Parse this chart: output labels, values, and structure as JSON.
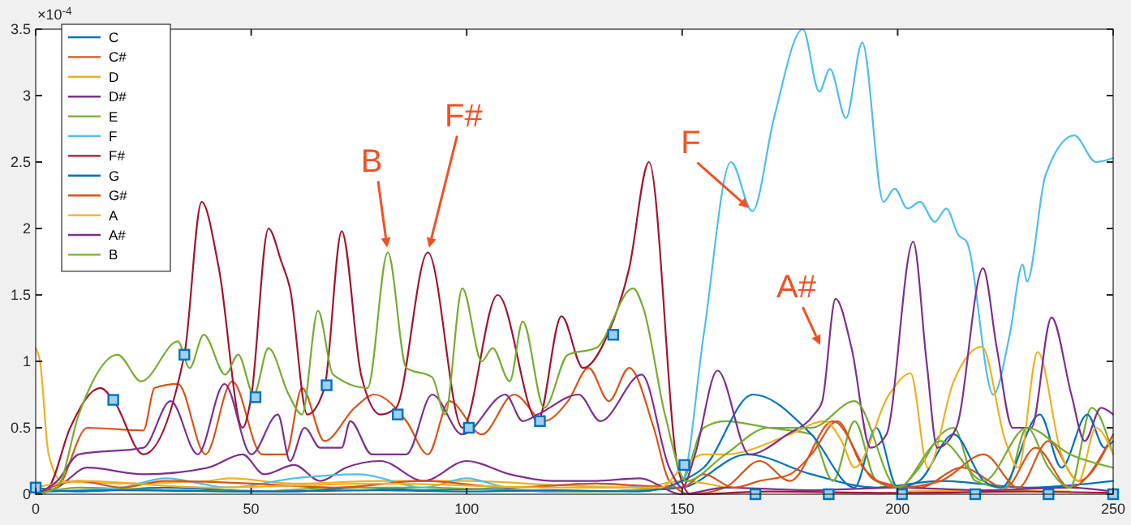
{
  "chart_data": {
    "type": "line",
    "xlim": [
      0,
      250
    ],
    "xticks": [
      0,
      50,
      100,
      150,
      200,
      250
    ],
    "ylim": [
      0,
      3.5
    ],
    "yticks": [
      0,
      0.5,
      1,
      1.5,
      2,
      2.5,
      3,
      3.5
    ],
    "grid": false,
    "legend": "top left",
    "marker": "none",
    "line_style": "solid",
    "annotations": [
      "×10$^{-4}$",
      {
        "text": "B",
        "x": 81.7,
        "y": 1.82
      },
      {
        "text": "F#",
        "x": 91,
        "y": 1.82
      },
      {
        "text": "F",
        "x": 166.3,
        "y": 2.13
      },
      {
        "text": "A#",
        "x": 182.5,
        "y": 1.09
      }
    ],
    "series": [
      {
        "name": "C",
        "color": "#0072bd",
        "x": [
          0,
          10,
          30,
          45,
          60,
          75,
          90,
          105,
          120,
          140,
          150,
          165,
          180,
          195,
          210,
          230,
          250
        ],
        "values": [
          0.05,
          0.02,
          0.05,
          0.03,
          0.02,
          0.05,
          0.03,
          0.04,
          0.02,
          0.03,
          0.05,
          0.3,
          0.15,
          0.05,
          0.1,
          0.05,
          0.1
        ]
      },
      {
        "name": "C#",
        "color": "#d95319",
        "x": [
          0,
          5,
          12,
          25,
          27.6,
          33,
          39.4,
          45.6,
          52.5,
          58,
          61.8,
          67,
          74,
          78.6,
          86,
          91,
          96,
          103.5,
          111,
          118,
          123.5,
          128.3,
          133,
          137.7,
          143.4,
          147,
          152,
          160,
          168,
          175,
          185,
          195,
          205,
          215,
          225,
          232,
          240,
          250
        ],
        "values": [
          0,
          0.05,
          0.5,
          0.48,
          0.8,
          0.83,
          0.3,
          0.85,
          0.3,
          0.3,
          0.8,
          0.4,
          0.65,
          0.75,
          0.55,
          0.3,
          0.7,
          0.45,
          0.75,
          0.55,
          0.7,
          0.95,
          0.7,
          0.95,
          0.5,
          0.1,
          0,
          0.05,
          0.25,
          0.1,
          0.55,
          0.1,
          0.05,
          0.2,
          0.05,
          0.35,
          0.05,
          0.45
        ]
      },
      {
        "name": "D",
        "color": "#edb120",
        "x": [
          0,
          1,
          3,
          6,
          20,
          40,
          45,
          60,
          80,
          100,
          120,
          140,
          150,
          160,
          180,
          200,
          220,
          240
        ],
        "values": [
          1.1,
          1.0,
          0.3,
          0.1,
          0.08,
          0.1,
          0.12,
          0.08,
          0.1,
          0.1,
          0.07,
          0.05,
          0.1,
          0.05,
          null,
          0.02,
          0.03,
          0.02
        ]
      },
      {
        "name": "D#",
        "color": "#7e2f8e",
        "x": [
          0,
          5,
          12,
          25,
          40,
          48,
          53,
          60,
          66,
          72,
          80,
          90,
          100,
          110,
          120,
          130,
          140,
          150,
          160,
          180,
          200,
          220,
          240,
          250
        ],
        "values": [
          0,
          0.05,
          0.2,
          0.15,
          0.2,
          0.3,
          0.15,
          0.22,
          0.1,
          0.2,
          0.25,
          0.1,
          0.25,
          0.15,
          0.1,
          0.1,
          0.12,
          0,
          0.05,
          0.03,
          0.05,
          0.03,
          0.05,
          0.02
        ]
      },
      {
        "name": "E",
        "color": "#77ac30",
        "x": [
          0,
          10,
          30,
          50,
          70,
          90,
          110,
          130,
          145,
          150,
          155,
          160,
          170,
          180,
          185,
          190,
          195,
          200,
          205,
          210,
          213,
          218,
          225,
          230,
          235,
          240,
          245,
          250
        ],
        "values": [
          0,
          0.05,
          0.03,
          0.02,
          0.05,
          0.05,
          0.03,
          0.02,
          0.05,
          0.1,
          0.5,
          0.55,
          0.5,
          0.45,
          0.1,
          0.55,
          0.1,
          0.05,
          0.2,
          0.45,
          0.5,
          0.1,
          0.05,
          0.5,
          0.2,
          0.05,
          0.65,
          0.3
        ]
      },
      {
        "name": "F",
        "color": "#4dbeee",
        "x": [
          0,
          20,
          30,
          45,
          60,
          75,
          90,
          100,
          110,
          130,
          145,
          150,
          155,
          161.3,
          166.3,
          171.3,
          178,
          181.8,
          184.3,
          188,
          191.8,
          196.7,
          199.3,
          202.3,
          205.2,
          208.6,
          211.3,
          214.1,
          216,
          222.2,
          226,
          229,
          230,
          234.3,
          241,
          246,
          250
        ],
        "values": [
          0.02,
          0.05,
          0.12,
          0.05,
          0.12,
          0.15,
          0.05,
          0.12,
          0.05,
          0.08,
          0.05,
          0.1,
          1.2,
          2.5,
          2.13,
          2.83,
          3.5,
          3.03,
          3.2,
          2.83,
          3.4,
          2.2,
          2.3,
          2.15,
          2.2,
          2.05,
          2.15,
          1.95,
          1.9,
          0.75,
          1.2,
          1.73,
          1.6,
          2.4,
          2.7,
          2.5,
          2.53
        ]
      },
      {
        "name": "F#",
        "color": "#a2142f",
        "x": [
          0,
          3,
          8,
          15,
          18,
          25,
          34.5,
          38.5,
          42.5,
          48,
          50,
          54,
          57,
          59,
          63,
          67,
          71,
          75.5,
          80,
          83.6,
          91,
          99,
          107.2,
          116.5,
          122,
          127,
          132.7,
          137.7,
          142.3,
          149,
          152,
          170,
          200,
          230,
          250
        ],
        "values": [
          0,
          0.05,
          0.5,
          0.8,
          0.71,
          0.3,
          1.05,
          2.2,
          1.7,
          0.5,
          0.73,
          2.0,
          1.75,
          1.55,
          0.6,
          0.8,
          1.98,
          0.9,
          0.6,
          0.65,
          1.82,
          0.5,
          1.5,
          0.55,
          1.34,
          0.95,
          1.2,
          1.7,
          2.5,
          0.2,
          0,
          0.02,
          0.01,
          0.02,
          0.01
        ]
      },
      {
        "name": "G",
        "color": "#0072bd",
        "x": [
          0,
          20,
          50,
          80,
          100,
          120,
          140,
          150,
          155,
          166.4,
          180,
          190,
          195,
          200,
          205,
          213,
          220,
          224,
          233,
          238,
          244,
          248,
          250
        ],
        "values": [
          0.02,
          0.03,
          0.02,
          0.03,
          0.02,
          0.03,
          0.02,
          0.1,
          0.2,
          0.75,
          0.45,
          0.05,
          0.5,
          0.05,
          0.1,
          0.45,
          0.1,
          0.05,
          0.6,
          0.2,
          0.6,
          0.35,
          0.4
        ]
      },
      {
        "name": "G#",
        "color": "#d95319",
        "x": [
          0,
          10,
          20,
          30,
          50,
          70,
          90,
          110,
          130,
          150,
          155,
          162,
          168,
          175,
          180,
          186,
          192,
          200,
          210,
          220,
          228,
          235,
          242,
          250
        ],
        "values": [
          0,
          0.1,
          0.05,
          0.1,
          0.08,
          0.05,
          0.1,
          0.05,
          0.08,
          0.05,
          0.15,
          0.05,
          0.1,
          0.15,
          0.3,
          0.55,
          0.2,
          0.05,
          0.1,
          0.3,
          0.05,
          0.4,
          0.1,
          0.45
        ]
      },
      {
        "name": "A",
        "color": "#edb120",
        "x": [
          0,
          10,
          40,
          80,
          120,
          145,
          150,
          155,
          160,
          175,
          183,
          187,
          190,
          198,
          203,
          207,
          213,
          219.5,
          225,
          228,
          232.5,
          238,
          242,
          246,
          250
        ],
        "values": [
          0.05,
          0.1,
          0.05,
          0.08,
          0.05,
          0.05,
          0.2,
          0.3,
          0.3,
          0.45,
          0.55,
          0.4,
          0.2,
          0.75,
          0.91,
          0.2,
          0.85,
          1.11,
          0.4,
          0.2,
          1.07,
          0.3,
          0.1,
          0.5,
          0.3
        ]
      },
      {
        "name": "A#",
        "color": "#7e2f8e",
        "x": [
          0,
          5,
          10,
          25,
          31.3,
          37.6,
          43.8,
          50,
          56.2,
          59,
          62.4,
          66,
          71,
          73,
          78,
          86,
          92,
          99,
          109,
          113,
          116.5,
          126,
          131,
          140.6,
          147,
          150,
          153,
          158.2,
          165.6,
          174.4,
          180.6,
          182.5,
          185.6,
          189.3,
          193.7,
          197.4,
          203.6,
          206.7,
          209.2,
          213.6,
          219.8,
          223,
          226.7,
          231,
          235.7,
          240.3,
          243.4,
          247.2,
          250
        ],
        "values": [
          0,
          0.1,
          0.3,
          0.35,
          0.7,
          0.3,
          0.83,
          0.3,
          0.6,
          0.25,
          0.5,
          0.35,
          0.35,
          0.55,
          0.3,
          0.3,
          0.75,
          0.45,
          0.75,
          0.55,
          0.6,
          0.75,
          0.55,
          0.9,
          0.2,
          0.05,
          0.3,
          0.93,
          0.3,
          0.45,
          0.6,
          0.7,
          1.47,
          1.1,
          0.35,
          0.45,
          1.9,
          1.0,
          0.35,
          0.5,
          1.7,
          1.1,
          0.5,
          0.5,
          1.33,
          0.75,
          0.4,
          0.65,
          0.6
        ]
      },
      {
        "name": "B",
        "color": "#77ac30",
        "x": [
          0,
          5,
          10,
          19,
          24.5,
          33,
          35.7,
          39,
          44,
          47,
          50.6,
          54,
          58.7,
          61.8,
          65.5,
          69,
          77,
          81.7,
          86,
          92,
          95,
          99,
          103.5,
          106,
          110,
          113,
          118,
          123.5,
          130,
          138.6,
          141,
          146,
          151,
          160,
          170,
          180,
          190,
          200,
          210,
          220,
          230,
          240,
          250
        ],
        "values": [
          0,
          0.05,
          0.6,
          1.05,
          0.85,
          1.15,
          0.95,
          1.2,
          0.9,
          1.05,
          0.75,
          1.1,
          0.75,
          0.6,
          1.38,
          0.9,
          0.8,
          1.82,
          0.95,
          0.88,
          0.6,
          1.55,
          1.0,
          1.1,
          0.85,
          1.3,
          0.65,
          1.05,
          1.1,
          1.55,
          1.4,
          0.6,
          0.1,
          0.3,
          0.5,
          0.5,
          0.7,
          0.05,
          0.4,
          0.1,
          0.5,
          0.3,
          0.2
        ]
      },
      {
        "type": "scatter",
        "marker": "square",
        "color": "#0072bd",
        "x": [
          0,
          18,
          34.5,
          51,
          67.5,
          84,
          100.5,
          117,
          134,
          150.5,
          167,
          184,
          201,
          218,
          235,
          250
        ],
        "values": [
          0.05,
          0.71,
          1.05,
          0.73,
          0.82,
          0.6,
          0.5,
          0.55,
          1.2,
          0.22,
          0,
          0,
          0,
          0,
          0,
          0
        ]
      }
    ]
  }
}
